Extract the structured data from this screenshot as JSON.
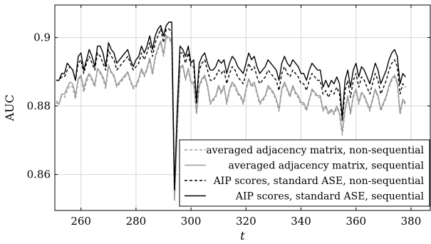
{
  "chart_data": {
    "type": "line",
    "title": "",
    "xlabel": "t",
    "ylabel": "AUC",
    "xlim": [
      250.5,
      387
    ],
    "ylim": [
      0.8495,
      0.9095
    ],
    "x_ticks": [
      260,
      280,
      300,
      320,
      340,
      360,
      380
    ],
    "x_tick_labels": [
      "260",
      "280",
      "300",
      "320",
      "340",
      "360",
      "380"
    ],
    "y_ticks": [
      0.86,
      0.88,
      0.9
    ],
    "y_tick_labels": [
      "0.86",
      "0.88",
      "0.9"
    ],
    "grid": true,
    "legend_position": "bottom-right",
    "series": [
      {
        "name": "averaged adjacency matrix, non-sequential",
        "color": "#9a9a9a",
        "dash": "dashed",
        "x": [
          251,
          252,
          253,
          254,
          255,
          256,
          257,
          258,
          259,
          260,
          261,
          262,
          263,
          264,
          265,
          266,
          267,
          268,
          269,
          270,
          271,
          272,
          273,
          274,
          275,
          276,
          277,
          278,
          279,
          280,
          281,
          282,
          283,
          284,
          285,
          286,
          287,
          288,
          289,
          290,
          291,
          292,
          293,
          294,
          295,
          296,
          297,
          298,
          299,
          300,
          301,
          302,
          303,
          304,
          305,
          306,
          307,
          308,
          309,
          310,
          311,
          312,
          313,
          314,
          315,
          316,
          317,
          318,
          319,
          320,
          321,
          322,
          323,
          324,
          325,
          326,
          327,
          328,
          329,
          330,
          331,
          332,
          333,
          334,
          335,
          336,
          337,
          338,
          339,
          340,
          341,
          342,
          343,
          344,
          345,
          346,
          347,
          348,
          349,
          350,
          351,
          352,
          353,
          354,
          355,
          356,
          357,
          358,
          359,
          360,
          361,
          362,
          363,
          364,
          365,
          366,
          367,
          368,
          369,
          370,
          371,
          372,
          373,
          374,
          375,
          376,
          377,
          378
        ],
        "y": [
          0.881,
          0.8805,
          0.883,
          0.8825,
          0.8845,
          0.886,
          0.8855,
          0.882,
          0.8875,
          0.8885,
          0.884,
          0.887,
          0.889,
          0.8875,
          0.8855,
          0.8905,
          0.8895,
          0.888,
          0.885,
          0.8915,
          0.8895,
          0.8885,
          0.8855,
          0.8865,
          0.8875,
          0.8885,
          0.8895,
          0.887,
          0.885,
          0.8855,
          0.8875,
          0.8905,
          0.8885,
          0.8905,
          0.8935,
          0.889,
          0.894,
          0.8965,
          0.8985,
          0.8945,
          0.9,
          0.8995,
          0.8985,
          0.8525,
          0.8735,
          0.8905,
          0.8915,
          0.8875,
          0.8905,
          0.8865,
          0.8865,
          0.8775,
          0.8855,
          0.8875,
          0.8885,
          0.8855,
          0.8805,
          0.8815,
          0.8825,
          0.8855,
          0.8835,
          0.8855,
          0.8805,
          0.8845,
          0.8865,
          0.8855,
          0.8835,
          0.8825,
          0.8805,
          0.8845,
          0.8875,
          0.8855,
          0.8865,
          0.8835,
          0.8805,
          0.8815,
          0.8825,
          0.8855,
          0.8845,
          0.8835,
          0.8815,
          0.8785,
          0.8845,
          0.8865,
          0.8845,
          0.8825,
          0.8855,
          0.8835,
          0.8825,
          0.8805,
          0.8805,
          0.8785,
          0.8815,
          0.8845,
          0.8835,
          0.8825,
          0.8825,
          0.8785,
          0.8795,
          0.8775,
          0.8785,
          0.8775,
          0.8795,
          0.8775,
          0.8715,
          0.8785,
          0.8825,
          0.8775,
          0.8825,
          0.8845,
          0.8805,
          0.8835,
          0.8825,
          0.8805,
          0.8785,
          0.8815,
          0.8845,
          0.8825,
          0.8785,
          0.8805,
          0.8825,
          0.8855,
          0.8875,
          0.8885,
          0.8865,
          0.8775,
          0.8815,
          0.8805
        ]
      },
      {
        "name": "averaged adjacency matrix, sequential",
        "color": "#9a9a9a",
        "dash": "solid",
        "x": [
          251,
          252,
          253,
          254,
          255,
          256,
          257,
          258,
          259,
          260,
          261,
          262,
          263,
          264,
          265,
          266,
          267,
          268,
          269,
          270,
          271,
          272,
          273,
          274,
          275,
          276,
          277,
          278,
          279,
          280,
          281,
          282,
          283,
          284,
          285,
          286,
          287,
          288,
          289,
          290,
          291,
          292,
          293,
          294,
          295,
          296,
          297,
          298,
          299,
          300,
          301,
          302,
          303,
          304,
          305,
          306,
          307,
          308,
          309,
          310,
          311,
          312,
          313,
          314,
          315,
          316,
          317,
          318,
          319,
          320,
          321,
          322,
          323,
          324,
          325,
          326,
          327,
          328,
          329,
          330,
          331,
          332,
          333,
          334,
          335,
          336,
          337,
          338,
          339,
          340,
          341,
          342,
          343,
          344,
          345,
          346,
          347,
          348,
          349,
          350,
          351,
          352,
          353,
          354,
          355,
          356,
          357,
          358,
          359,
          360,
          361,
          362,
          363,
          364,
          365,
          366,
          367,
          368,
          369,
          370,
          371,
          372,
          373,
          374,
          375,
          376,
          377,
          378
        ],
        "y": [
          0.8815,
          0.8805,
          0.8835,
          0.8835,
          0.8855,
          0.887,
          0.8865,
          0.883,
          0.888,
          0.889,
          0.885,
          0.888,
          0.8895,
          0.888,
          0.886,
          0.891,
          0.89,
          0.8885,
          0.886,
          0.892,
          0.89,
          0.889,
          0.886,
          0.887,
          0.888,
          0.889,
          0.89,
          0.8875,
          0.8855,
          0.886,
          0.888,
          0.891,
          0.889,
          0.891,
          0.894,
          0.8895,
          0.8945,
          0.897,
          0.899,
          0.895,
          0.9005,
          0.9,
          0.899,
          0.8525,
          0.874,
          0.891,
          0.892,
          0.888,
          0.891,
          0.887,
          0.887,
          0.878,
          0.886,
          0.888,
          0.889,
          0.886,
          0.881,
          0.882,
          0.883,
          0.886,
          0.884,
          0.886,
          0.881,
          0.885,
          0.887,
          0.886,
          0.884,
          0.883,
          0.881,
          0.885,
          0.888,
          0.886,
          0.887,
          0.884,
          0.881,
          0.882,
          0.883,
          0.886,
          0.885,
          0.884,
          0.882,
          0.879,
          0.885,
          0.887,
          0.885,
          0.883,
          0.886,
          0.884,
          0.883,
          0.881,
          0.881,
          0.879,
          0.882,
          0.885,
          0.884,
          0.883,
          0.883,
          0.879,
          0.88,
          0.878,
          0.879,
          0.878,
          0.88,
          0.878,
          0.8725,
          0.879,
          0.883,
          0.878,
          0.883,
          0.885,
          0.881,
          0.884,
          0.883,
          0.881,
          0.879,
          0.882,
          0.885,
          0.883,
          0.879,
          0.881,
          0.883,
          0.886,
          0.888,
          0.889,
          0.887,
          0.878,
          0.882,
          0.881
        ]
      },
      {
        "name": "AIP scores, standard ASE, non-sequential",
        "color": "#000000",
        "dash": "dashed",
        "x": [
          251,
          252,
          253,
          254,
          255,
          256,
          257,
          258,
          259,
          260,
          261,
          262,
          263,
          264,
          265,
          266,
          267,
          268,
          269,
          270,
          271,
          272,
          273,
          274,
          275,
          276,
          277,
          278,
          279,
          280,
          281,
          282,
          283,
          284,
          285,
          286,
          287,
          288,
          289,
          290,
          291,
          292,
          293,
          294,
          295,
          296,
          297,
          298,
          299,
          300,
          301,
          302,
          303,
          304,
          305,
          306,
          307,
          308,
          309,
          310,
          311,
          312,
          313,
          314,
          315,
          316,
          317,
          318,
          319,
          320,
          321,
          322,
          323,
          324,
          325,
          326,
          327,
          328,
          329,
          330,
          331,
          332,
          333,
          334,
          335,
          336,
          337,
          338,
          339,
          340,
          341,
          342,
          343,
          344,
          345,
          346,
          347,
          348,
          349,
          350,
          351,
          352,
          353,
          354,
          355,
          356,
          357,
          358,
          359,
          360,
          361,
          362,
          363,
          364,
          365,
          366,
          367,
          368,
          369,
          370,
          371,
          372,
          373,
          374,
          375,
          376,
          377,
          378
        ],
        "y": [
          0.8875,
          0.8875,
          0.8885,
          0.8885,
          0.8905,
          0.8915,
          0.8905,
          0.8875,
          0.8925,
          0.8935,
          0.8895,
          0.8925,
          0.8945,
          0.8925,
          0.8905,
          0.8955,
          0.8945,
          0.8925,
          0.8905,
          0.8965,
          0.8945,
          0.8935,
          0.8905,
          0.8915,
          0.8925,
          0.8935,
          0.8945,
          0.8925,
          0.8905,
          0.8915,
          0.8925,
          0.8955,
          0.8935,
          0.8955,
          0.8985,
          0.8945,
          0.8985,
          0.9005,
          0.9025,
          0.8985,
          0.9025,
          0.9025,
          0.9015,
          0.8555,
          0.8775,
          0.8955,
          0.8955,
          0.8925,
          0.8955,
          0.8915,
          0.8915,
          0.8805,
          0.8905,
          0.8925,
          0.8935,
          0.8905,
          0.8875,
          0.8875,
          0.8885,
          0.8905,
          0.8895,
          0.8905,
          0.8865,
          0.8895,
          0.8915,
          0.8905,
          0.8885,
          0.8875,
          0.8865,
          0.8895,
          0.8925,
          0.8905,
          0.8915,
          0.8885,
          0.8865,
          0.8875,
          0.8885,
          0.8905,
          0.8895,
          0.8885,
          0.8875,
          0.8845,
          0.8895,
          0.8915,
          0.8895,
          0.8885,
          0.8905,
          0.8895,
          0.8885,
          0.8865,
          0.8865,
          0.8845,
          0.8875,
          0.8895,
          0.8885,
          0.8875,
          0.8875,
          0.8835,
          0.8845,
          0.8825,
          0.8845,
          0.8835,
          0.8855,
          0.8835,
          0.8755,
          0.8845,
          0.8875,
          0.8825,
          0.8875,
          0.8895,
          0.8855,
          0.8885,
          0.8875,
          0.8855,
          0.8835,
          0.8865,
          0.8895,
          0.8875,
          0.8835,
          0.8855,
          0.8875,
          0.8905,
          0.8925,
          0.8935,
          0.8915,
          0.8835,
          0.8865,
          0.8855
        ]
      },
      {
        "name": "AIP scores, standard ASE, sequential",
        "color": "#000000",
        "dash": "solid",
        "x": [
          251,
          252,
          253,
          254,
          255,
          256,
          257,
          258,
          259,
          260,
          261,
          262,
          263,
          264,
          265,
          266,
          267,
          268,
          269,
          270,
          271,
          272,
          273,
          274,
          275,
          276,
          277,
          278,
          279,
          280,
          281,
          282,
          283,
          284,
          285,
          286,
          287,
          288,
          289,
          290,
          291,
          292,
          293,
          294,
          295,
          296,
          297,
          298,
          299,
          300,
          301,
          302,
          303,
          304,
          305,
          306,
          307,
          308,
          309,
          310,
          311,
          312,
          313,
          314,
          315,
          316,
          317,
          318,
          319,
          320,
          321,
          322,
          323,
          324,
          325,
          326,
          327,
          328,
          329,
          330,
          331,
          332,
          333,
          334,
          335,
          336,
          337,
          338,
          339,
          340,
          341,
          342,
          343,
          344,
          345,
          346,
          347,
          348,
          349,
          350,
          351,
          352,
          353,
          354,
          355,
          356,
          357,
          358,
          359,
          360,
          361,
          362,
          363,
          364,
          365,
          366,
          367,
          368,
          369,
          370,
          371,
          372,
          373,
          374,
          375,
          376,
          377,
          378
        ],
        "y": [
          0.8875,
          0.8875,
          0.8895,
          0.8895,
          0.8925,
          0.8915,
          0.8905,
          0.8875,
          0.8945,
          0.8955,
          0.8905,
          0.8935,
          0.8965,
          0.8945,
          0.8915,
          0.8975,
          0.8975,
          0.8955,
          0.8915,
          0.8985,
          0.8965,
          0.8955,
          0.8925,
          0.8935,
          0.8945,
          0.8955,
          0.8965,
          0.8935,
          0.8915,
          0.8935,
          0.8945,
          0.8975,
          0.8955,
          0.8975,
          0.9005,
          0.8965,
          0.9005,
          0.9025,
          0.9035,
          0.9005,
          0.9035,
          0.9045,
          0.9045,
          0.8555,
          0.8795,
          0.8975,
          0.8965,
          0.8945,
          0.8975,
          0.8925,
          0.8935,
          0.8815,
          0.8925,
          0.8945,
          0.8955,
          0.8925,
          0.8905,
          0.8905,
          0.8915,
          0.8935,
          0.8925,
          0.8935,
          0.8895,
          0.8925,
          0.8945,
          0.8935,
          0.8915,
          0.8905,
          0.8895,
          0.8925,
          0.8955,
          0.8935,
          0.8945,
          0.8915,
          0.8895,
          0.8905,
          0.8915,
          0.8935,
          0.8925,
          0.8915,
          0.8905,
          0.8875,
          0.8925,
          0.8945,
          0.8925,
          0.8915,
          0.8935,
          0.8925,
          0.8915,
          0.8895,
          0.8895,
          0.8875,
          0.8905,
          0.8925,
          0.8915,
          0.8905,
          0.8905,
          0.8855,
          0.8875,
          0.8855,
          0.8875,
          0.8865,
          0.8885,
          0.8865,
          0.8765,
          0.8875,
          0.8905,
          0.8855,
          0.8905,
          0.8925,
          0.8885,
          0.8915,
          0.8905,
          0.8885,
          0.8865,
          0.8895,
          0.8925,
          0.8905,
          0.8865,
          0.8885,
          0.8905,
          0.8935,
          0.8955,
          0.8965,
          0.8945,
          0.8865,
          0.8895,
          0.8885
        ]
      }
    ]
  }
}
